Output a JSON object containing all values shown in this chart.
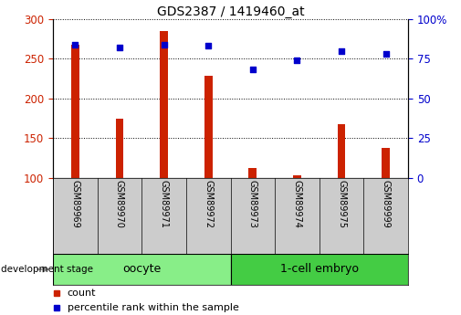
{
  "title": "GDS2387 / 1419460_at",
  "samples": [
    "GSM89969",
    "GSM89970",
    "GSM89971",
    "GSM89972",
    "GSM89973",
    "GSM89974",
    "GSM89975",
    "GSM89999"
  ],
  "counts": [
    267,
    174,
    285,
    229,
    113,
    103,
    168,
    138
  ],
  "percentiles": [
    84,
    82,
    84,
    83,
    68,
    74,
    80,
    78
  ],
  "groups": [
    {
      "label": "oocyte",
      "start": 0,
      "end": 4,
      "color": "#88ee88"
    },
    {
      "label": "1-cell embryo",
      "start": 4,
      "end": 8,
      "color": "#44cc44"
    }
  ],
  "ylim_left": [
    100,
    300
  ],
  "ylim_right": [
    0,
    100
  ],
  "yticks_left": [
    100,
    150,
    200,
    250,
    300
  ],
  "ytick_labels_right": [
    "0",
    "25",
    "50",
    "75",
    "100%"
  ],
  "yticks_right": [
    0,
    25,
    50,
    75,
    100
  ],
  "bar_color": "#cc2200",
  "dot_color": "#0000cc",
  "bar_width": 0.18,
  "grid_color": "#000000",
  "bg_color": "#ffffff",
  "xlabel_area_color": "#cccccc",
  "legend_count_color": "#cc2200",
  "legend_pct_color": "#0000cc",
  "development_stage_label": "development stage",
  "figsize": [
    5.05,
    3.45
  ],
  "dpi": 100
}
